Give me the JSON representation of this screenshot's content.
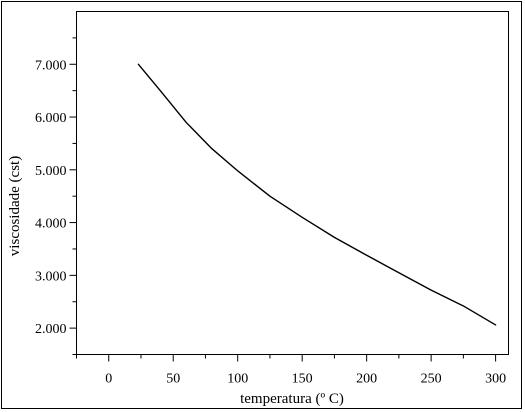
{
  "chart_data": {
    "type": "line",
    "title": "",
    "xlabel": "temperatura (º C)",
    "ylabel": "viscosidade (cst)",
    "xlim": [
      -25,
      310
    ],
    "ylim": [
      1.5,
      8.0
    ],
    "x_ticks": [
      0,
      50,
      100,
      150,
      200,
      250,
      300
    ],
    "x_tick_labels": [
      "0",
      "50",
      "100",
      "150",
      "200",
      "250",
      "300"
    ],
    "y_ticks": [
      2,
      3,
      4,
      5,
      6,
      7
    ],
    "y_tick_labels": [
      "2.000",
      "3.000",
      "4.000",
      "5.000",
      "6.000",
      "7.000"
    ],
    "grid": false,
    "legend": "none",
    "line_color": "#000000",
    "series": [
      {
        "x": [
          23,
          40,
          60,
          80,
          100,
          125,
          150,
          175,
          200,
          225,
          250,
          275,
          300
        ],
        "y": [
          7.0,
          6.5,
          5.9,
          5.4,
          4.98,
          4.5,
          4.1,
          3.72,
          3.38,
          3.05,
          2.72,
          2.42,
          2.06
        ]
      }
    ]
  }
}
